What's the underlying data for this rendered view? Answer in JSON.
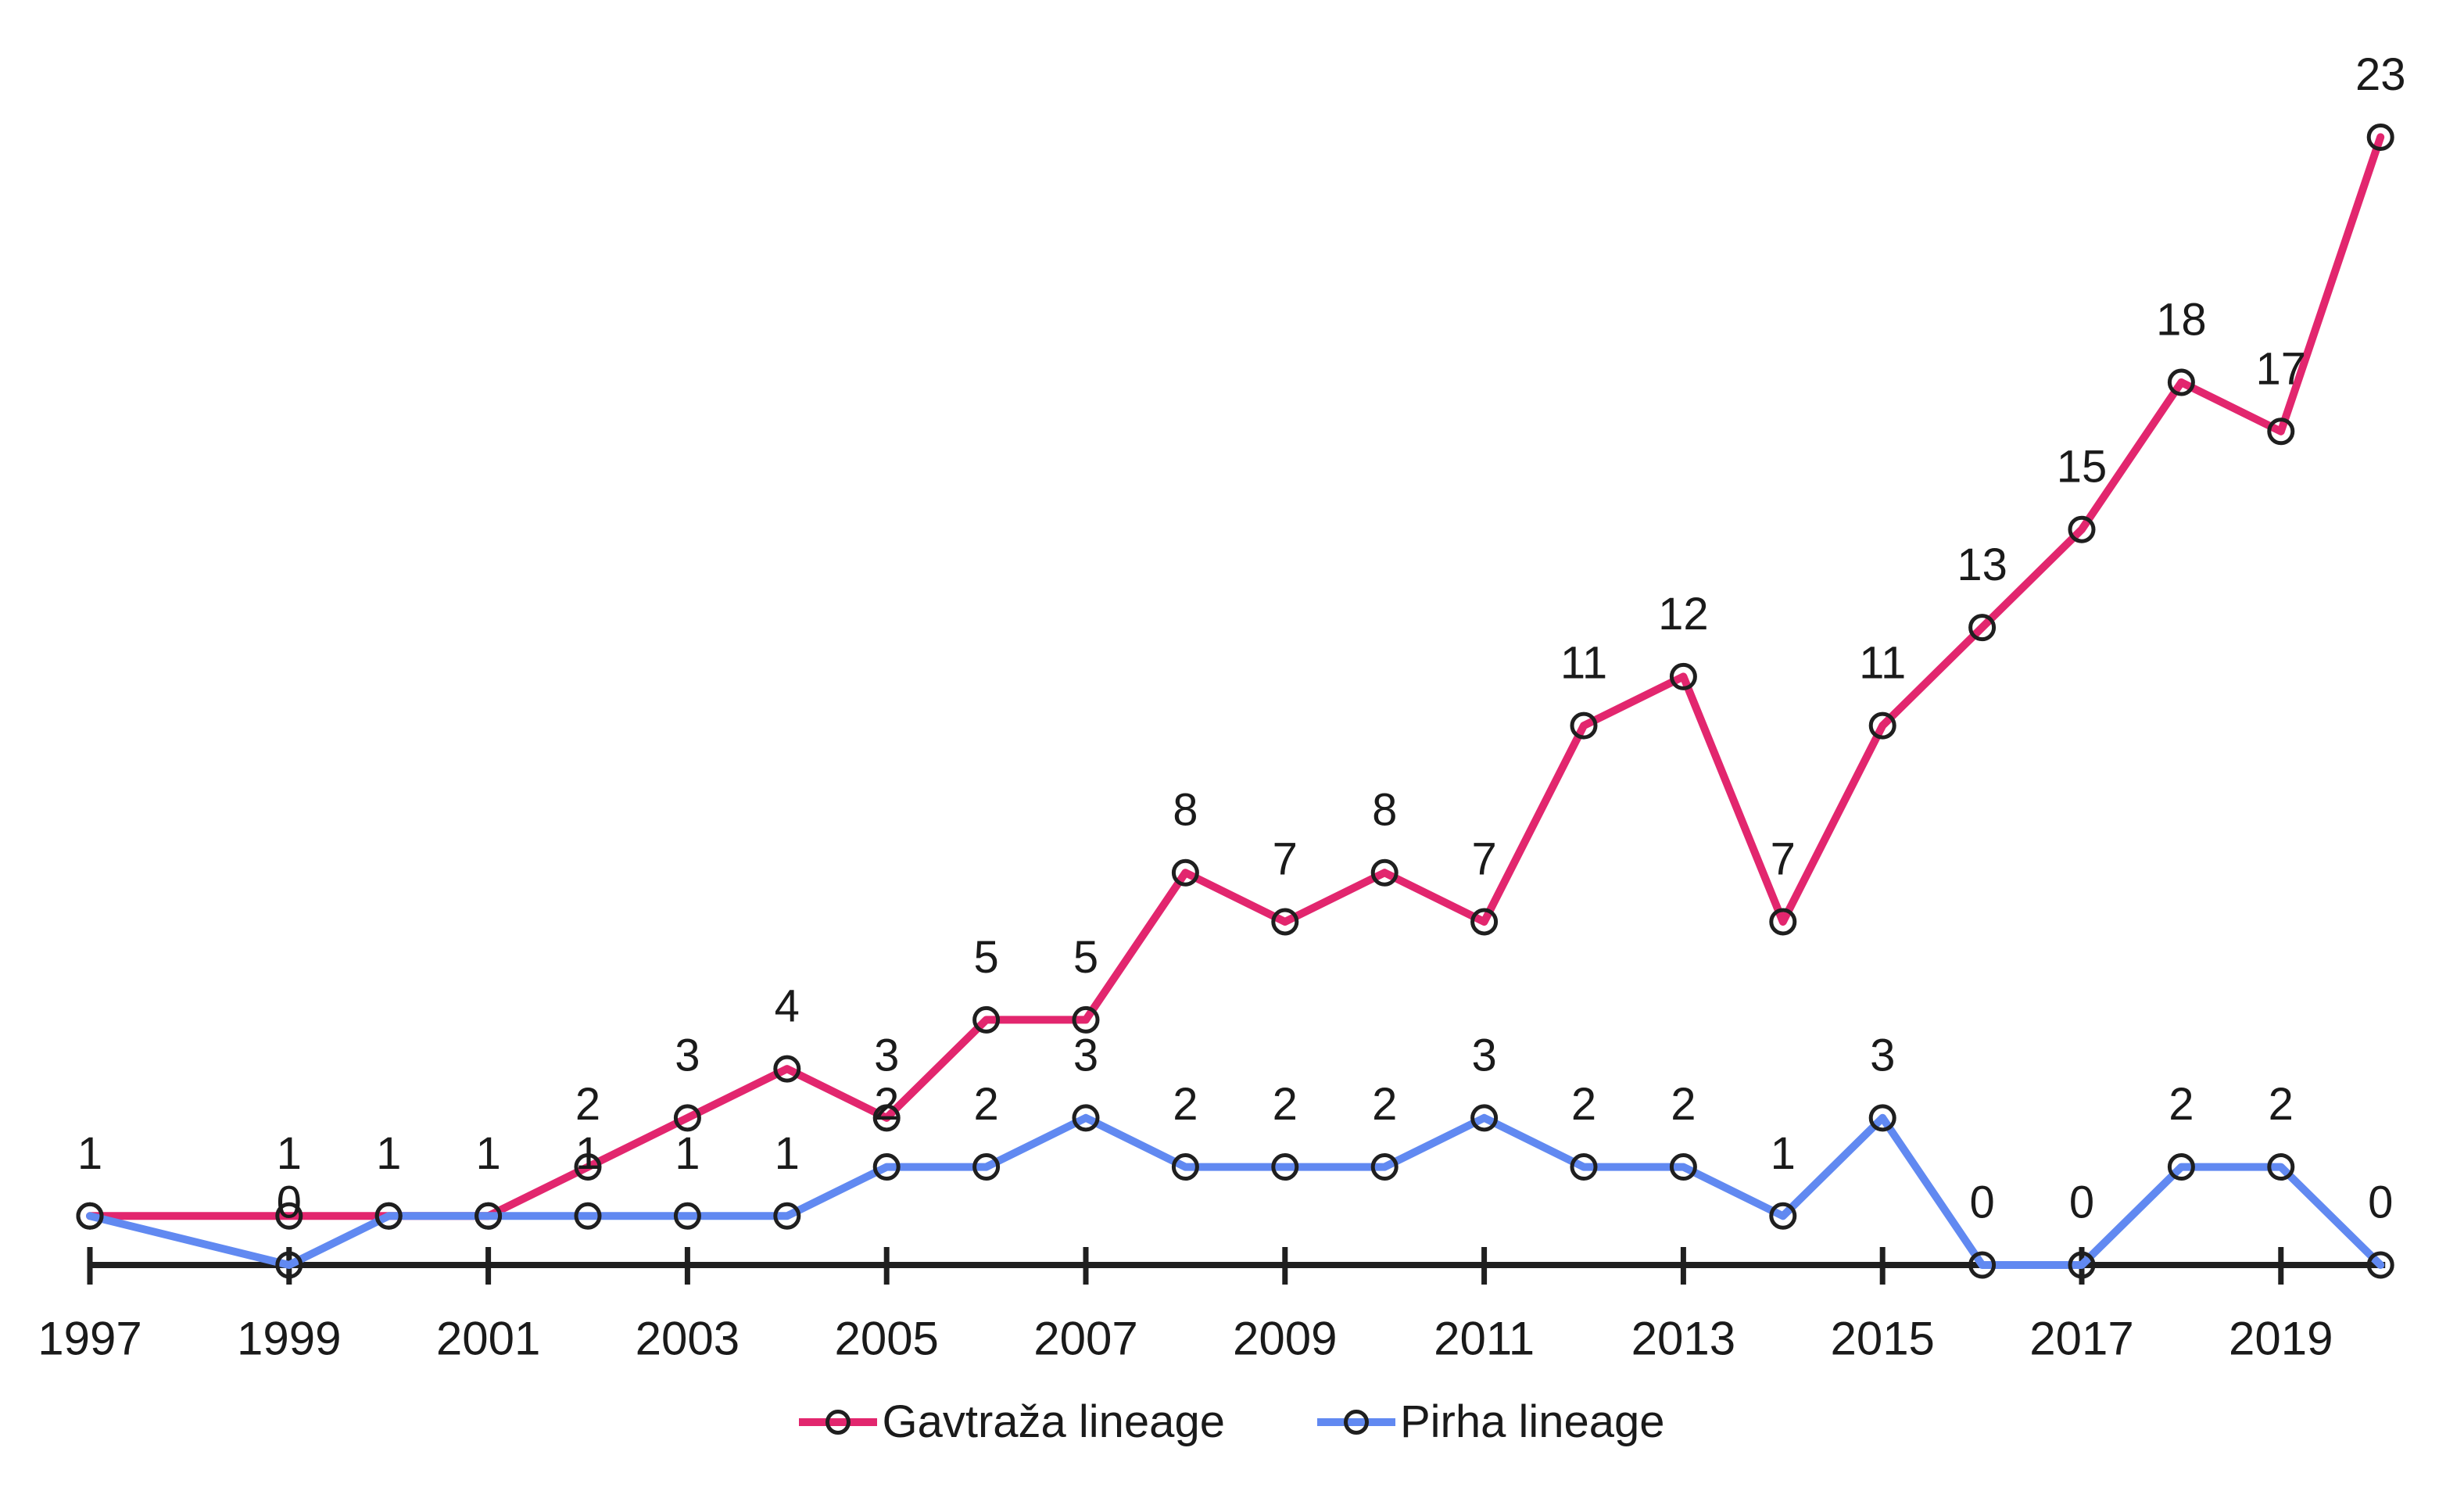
{
  "figure": {
    "background": "#ffffff",
    "text_color": "#1a1a1a",
    "axis_color": "#1f1f1f"
  },
  "legend": {
    "position": "bottom-center",
    "items": [
      {
        "label": "Gavtraža lineage",
        "color": "#E2266E",
        "marker": "open-circle-icon"
      },
      {
        "label": "Pirha lineage",
        "color": "#6189F1",
        "marker": "open-circle-icon"
      }
    ]
  },
  "chart_data": {
    "type": "line",
    "title": "",
    "xlabel": "",
    "ylabel": "",
    "grid": false,
    "data_labels": true,
    "legend_position": "bottom",
    "x": [
      1997,
      1998,
      1999,
      2000,
      2001,
      2002,
      2003,
      2004,
      2005,
      2006,
      2007,
      2008,
      2009,
      2010,
      2011,
      2012,
      2013,
      2014,
      2015,
      2016,
      2017,
      2018,
      2019,
      2020
    ],
    "x_tick_labels": [
      "1997",
      "1999",
      "2001",
      "2003",
      "2005",
      "2007",
      "2009",
      "2011",
      "2013",
      "2015",
      "2017",
      "2019"
    ],
    "x_tick_years": [
      1997,
      1999,
      2001,
      2003,
      2005,
      2007,
      2009,
      2011,
      2013,
      2015,
      2017,
      2019
    ],
    "ylim": [
      0,
      24
    ],
    "series": [
      {
        "name": "Gavtraža lineage",
        "color": "#E2266E",
        "values": [
          1,
          null,
          1,
          1,
          1,
          2,
          3,
          4,
          3,
          5,
          5,
          8,
          7,
          8,
          7,
          11,
          12,
          7,
          11,
          13,
          15,
          18,
          17,
          23
        ]
      },
      {
        "name": "Pirha lineage",
        "color": "#6189F1",
        "values": [
          1,
          null,
          0,
          1,
          1,
          1,
          1,
          1,
          2,
          2,
          3,
          2,
          2,
          2,
          3,
          2,
          2,
          1,
          3,
          0,
          0,
          2,
          2,
          0
        ]
      }
    ]
  }
}
